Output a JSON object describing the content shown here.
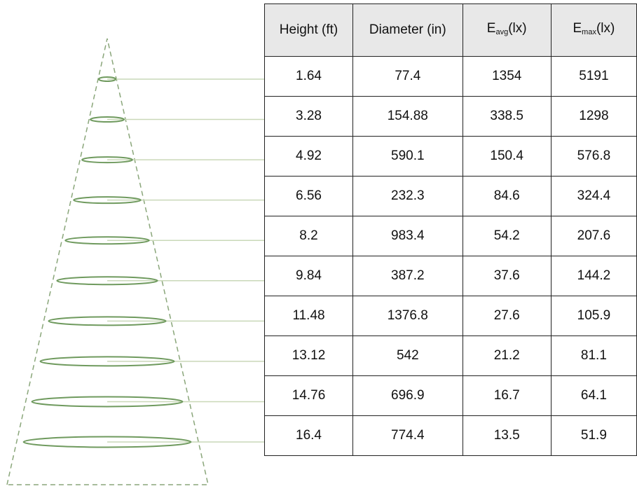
{
  "table": {
    "header": [
      {
        "text": "Height (ft)"
      },
      {
        "text": "Diameter (in)"
      },
      {
        "main": "E",
        "sub": "avg",
        "unit": "(lx)"
      },
      {
        "main": "E",
        "sub": "max",
        "unit": "(lx)"
      }
    ],
    "rows": [
      [
        1.64,
        77.4,
        1354,
        5191
      ],
      [
        3.28,
        154.88,
        338.5,
        1298
      ],
      [
        4.92,
        590.1,
        150.4,
        576.8
      ],
      [
        6.56,
        232.3,
        84.6,
        324.4
      ],
      [
        8.2,
        983.4,
        54.2,
        207.6
      ],
      [
        9.84,
        387.2,
        37.6,
        144.2
      ],
      [
        11.48,
        1376.8,
        27.6,
        105.9
      ],
      [
        13.12,
        542,
        21.2,
        81.1
      ],
      [
        14.76,
        696.9,
        16.7,
        64.1
      ],
      [
        16.4,
        774.4,
        13.5,
        51.9
      ]
    ]
  }
}
